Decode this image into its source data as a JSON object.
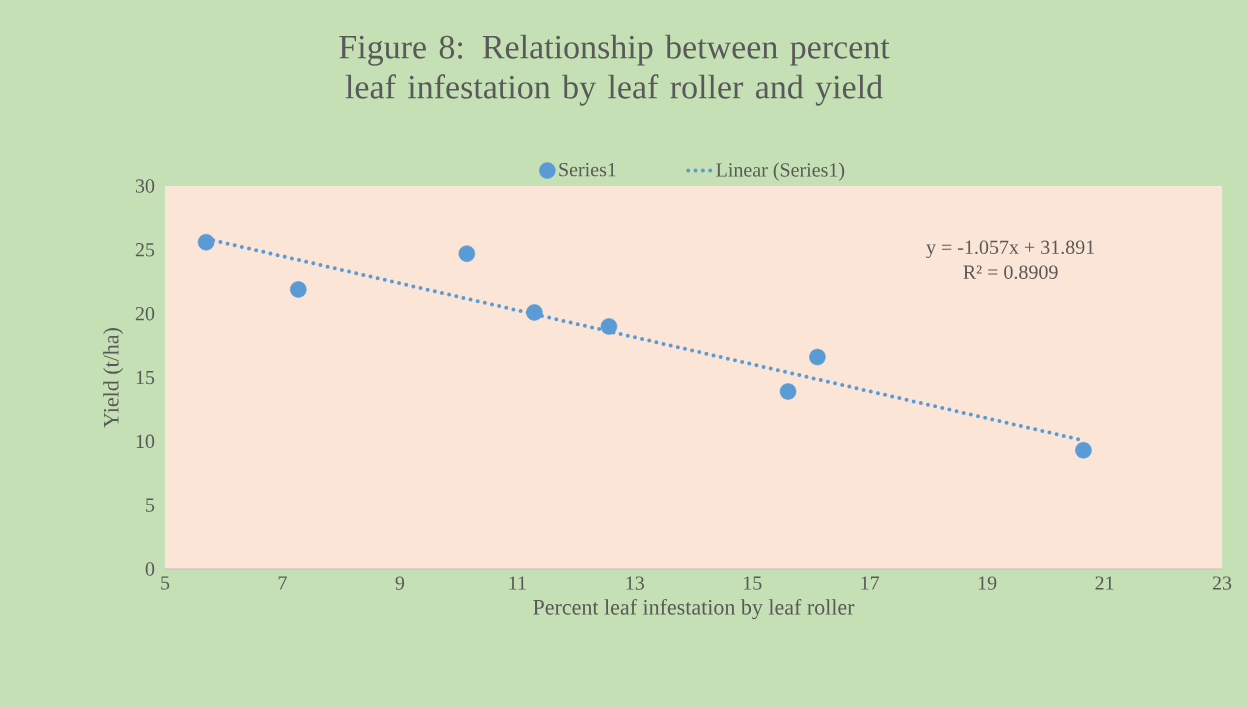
{
  "chart_data": {
    "type": "scatter",
    "title": "Figure 8: Relationship between percent leaf infestation by leaf roller and yield",
    "xlabel": "Percent leaf infestation by leaf roller",
    "ylabel": "Yield (t/ha)",
    "xlim": [
      5,
      23
    ],
    "xticks": [
      5,
      7,
      9,
      11,
      13,
      15,
      17,
      19,
      21,
      23
    ],
    "ylim": [
      0,
      30
    ],
    "yticks": [
      0,
      5,
      10,
      15,
      20,
      25,
      30
    ],
    "grid": false,
    "legend": "top",
    "series": [
      {
        "name": "Series1",
        "color": "#5b9bd5",
        "marker": "circle",
        "x": [
          5.7,
          7.27,
          10.14,
          11.29,
          12.56,
          15.61,
          16.11,
          20.64
        ],
        "values": [
          25.6,
          21.9,
          24.7,
          20.1,
          19.0,
          13.9,
          16.6,
          9.3
        ]
      },
      {
        "name": "Linear (Series1)",
        "type": "line",
        "color": "#5b9bd5",
        "marker": "none",
        "line_style": "dotted",
        "x": [
          5.7,
          20.64
        ],
        "values": [
          25.87,
          10.07
        ]
      }
    ],
    "annotations": [
      "y = -1.057x + 31.891",
      "R² = 0.8909"
    ]
  }
}
